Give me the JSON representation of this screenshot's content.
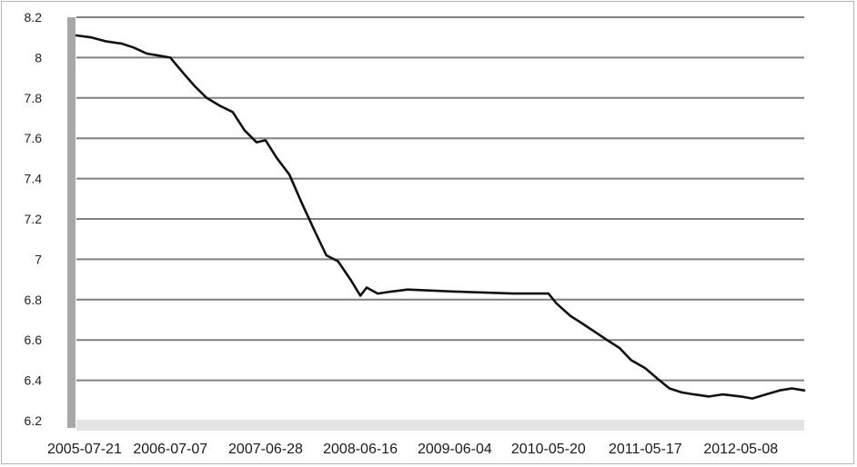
{
  "chart_data": {
    "type": "line",
    "title": "",
    "xlabel": "",
    "ylabel": "",
    "ylim": [
      6.2,
      8.2
    ],
    "yticks": [
      "8.2",
      "8",
      "7.8",
      "7.6",
      "7.4",
      "7.2",
      "7",
      "6.8",
      "6.6",
      "6.4",
      "6.2"
    ],
    "xticks": [
      "2005-07-21",
      "2006-07-07",
      "2007-06-28",
      "2008-06-16",
      "2009-06-04",
      "2010-05-20",
      "2011-05-17",
      "2012-05-08"
    ],
    "grid": true,
    "legend": "none",
    "colors": {
      "line": "#111111",
      "grid": "#4a4a4a",
      "axis": "#9a9a9a"
    },
    "series": [
      {
        "x": [
          "2005-07-21",
          "2005-09-15",
          "2005-11-10",
          "2006-01-05",
          "2006-02-20",
          "2006-04-10",
          "2006-05-25",
          "2006-07-07",
          "2006-08-20",
          "2006-10-05",
          "2006-11-20",
          "2007-01-10",
          "2007-02-25",
          "2007-04-10",
          "2007-05-25",
          "2007-06-28",
          "2007-08-10",
          "2007-09-25",
          "2007-11-10",
          "2007-12-25",
          "2008-02-10",
          "2008-03-25",
          "2008-05-10",
          "2008-06-16",
          "2008-07-10",
          "2008-08-20",
          "2008-10-10",
          "2008-12-10",
          "2009-06-04",
          "2010-01-10",
          "2010-05-20",
          "2010-06-20",
          "2010-08-10",
          "2010-09-25",
          "2010-11-10",
          "2010-12-25",
          "2011-02-10",
          "2011-03-25",
          "2011-05-17",
          "2011-06-30",
          "2011-08-15",
          "2011-09-30",
          "2011-11-15",
          "2012-01-10",
          "2012-03-01",
          "2012-05-08",
          "2012-06-20",
          "2012-08-10",
          "2012-09-30",
          "2012-11-15",
          "2012-12-31"
        ],
        "values": [
          8.11,
          8.1,
          8.08,
          8.07,
          8.05,
          8.02,
          8.01,
          8.0,
          7.93,
          7.86,
          7.8,
          7.76,
          7.73,
          7.64,
          7.58,
          7.59,
          7.5,
          7.42,
          7.28,
          7.15,
          7.02,
          6.99,
          6.9,
          6.82,
          6.86,
          6.83,
          6.84,
          6.85,
          6.84,
          6.83,
          6.83,
          6.78,
          6.72,
          6.68,
          6.64,
          6.6,
          6.56,
          6.5,
          6.46,
          6.41,
          6.36,
          6.34,
          6.33,
          6.32,
          6.33,
          6.32,
          6.31,
          6.33,
          6.35,
          6.36,
          6.35
        ]
      }
    ]
  }
}
